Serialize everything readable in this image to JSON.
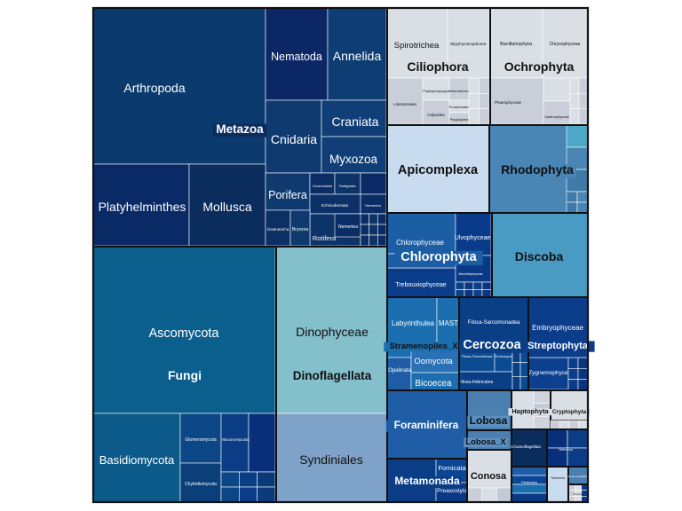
{
  "chart_data": {
    "type": "treemap",
    "title": "",
    "colors": {
      "navy": "#0b2d5e",
      "navy_deep": "#0a2a66",
      "blue_dark": "#0f3c78",
      "blue_mid": "#1f5b9a",
      "blue": "#2a6fb3",
      "steel": "#4a7fb0",
      "teal": "#3a8fbf",
      "teal_light": "#4ea8c8",
      "aqua": "#7fb6c9",
      "periwinkle": "#7fa3c8",
      "pale": "#c9dcef",
      "grey": "#d9dde4"
    },
    "groups": [
      {
        "name": "Metazoa",
        "children": [
          "Arthropoda",
          "Nematoda",
          "Annelida",
          "Cnidaria",
          "Craniata",
          "Myxozoa",
          "Platyhelminthes",
          "Mollusca",
          "Porifera",
          "Rotifera",
          "Urochordata",
          "Tardigrada",
          "Echinodermata",
          "Nemertea",
          "Gastrotricha",
          "Bryozoa"
        ]
      },
      {
        "name": "Fungi",
        "children": [
          "Ascomycota",
          "Basidiomycota",
          "Glomeromycota",
          "Chytridiomycota",
          "Mucoromycota"
        ]
      },
      {
        "name": "Dinoflagellata",
        "children": [
          "Dinophyceae",
          "Syndiniales"
        ]
      },
      {
        "name": "Ciliophora",
        "children": [
          "Spirotrichea",
          "Oligohymenophorea",
          "Litostomatea",
          "Phyllopharyngea",
          "Heterotrichea",
          "Colpodea",
          "Prostomatea",
          "Plagiopylea"
        ]
      },
      {
        "name": "Ochrophyta",
        "children": [
          "Bacillariophyta",
          "Chrysophyceae",
          "Phaeophyceae",
          "Bolidophyceae",
          "Xanthophyceae"
        ]
      },
      {
        "name": "Apicomplexa",
        "children": []
      },
      {
        "name": "Rhodophyta",
        "children": []
      },
      {
        "name": "Chlorophyta",
        "children": [
          "Chlorophyceae",
          "Ulvophyceae",
          "Trebouxiophyceae",
          "Mamiellophyceae"
        ]
      },
      {
        "name": "Discoba",
        "children": []
      },
      {
        "name": "Stramenopiles_X",
        "children": [
          "Labyrinthulea",
          "MAST",
          "Opalinata",
          "Oomycota",
          "Bicoecea"
        ]
      },
      {
        "name": "Cercozoa",
        "children": [
          "Filosa-Sarcomonadea",
          "Filosa-Thecofilosea",
          "Endomyxa",
          "Filosa-Imbricatea"
        ]
      },
      {
        "name": "Streptophyta",
        "children": [
          "Embryophyceae",
          "Zygnemophyceae"
        ]
      },
      {
        "name": "Foraminifera",
        "children": []
      },
      {
        "name": "Lobosa",
        "children": []
      },
      {
        "name": "Lobosa_X",
        "children": []
      },
      {
        "name": "Haptophyta",
        "children": []
      },
      {
        "name": "Cryptophyta",
        "children": []
      },
      {
        "name": "Metamonada",
        "children": [
          "Fornicata",
          "Preaxostyla"
        ]
      },
      {
        "name": "Conosa",
        "children": []
      },
      {
        "name": "Choanoflagellata",
        "children": []
      },
      {
        "name": "Heliozoa",
        "children": []
      },
      {
        "name": "Perkinsea",
        "children": []
      },
      {
        "name": "Telonemia",
        "children": []
      },
      {
        "name": "Apusomonadidae",
        "children": []
      },
      {
        "name": "Picozoa",
        "children": []
      }
    ]
  }
}
